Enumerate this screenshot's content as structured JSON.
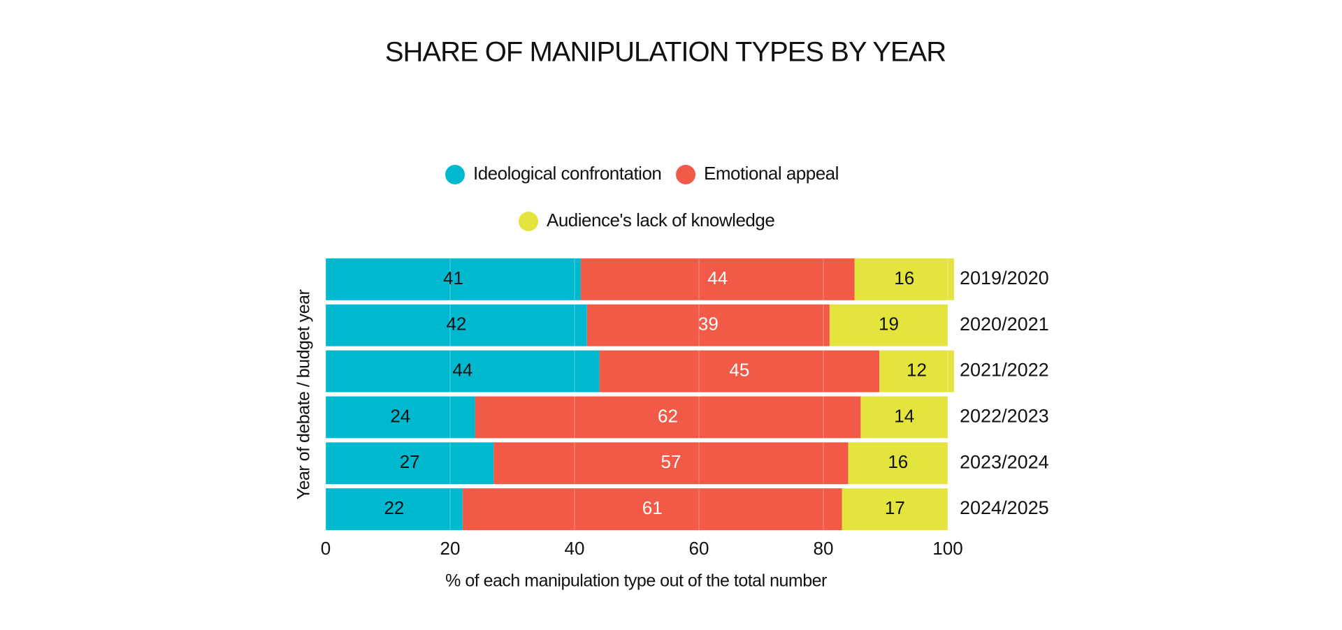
{
  "chart_data": {
    "type": "stacked_barh",
    "title": "SHARE OF MANIPULATION TYPES BY YEAR",
    "xlabel": "% of each manipulation type out of the total number",
    "ylabel": "Year of debate / budget year",
    "categories": [
      "2019/2020",
      "2020/2021",
      "2021/2022",
      "2022/2023",
      "2023/2024",
      "2024/2025"
    ],
    "series": [
      {
        "name": "Ideological confrontation",
        "color": "#00b9cf",
        "text_color": "#111111",
        "values": [
          41,
          42,
          44,
          24,
          27,
          22
        ]
      },
      {
        "name": "Emotional appeal",
        "color": "#f05a46",
        "text_color": "#ffffff",
        "values": [
          44,
          39,
          45,
          62,
          57,
          61
        ]
      },
      {
        "name": "Audience's lack of knowledge",
        "color": "#e4e43e",
        "text_color": "#111111",
        "values": [
          16,
          19,
          12,
          14,
          16,
          17
        ]
      }
    ],
    "xlim": [
      0,
      100
    ],
    "xticks": [
      0,
      20,
      40,
      60,
      80,
      100
    ],
    "grid": true,
    "legend": "top"
  }
}
